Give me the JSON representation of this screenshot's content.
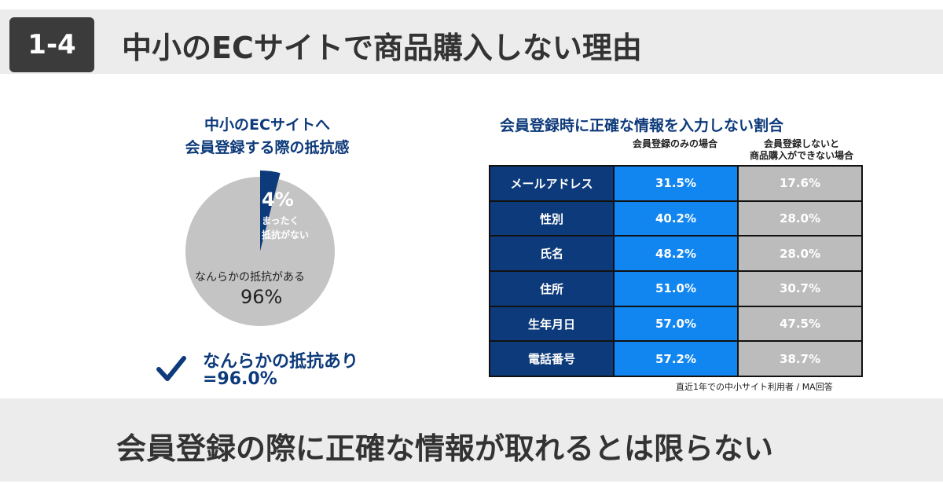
{
  "header": {
    "badge": "1-4",
    "title": "中小のECサイトで商品購入しない理由"
  },
  "conclusion": "会員登録の際に正確な情報が取れるとは限らない",
  "chart_data": [
    {
      "type": "pie",
      "title_line1": "中小のECサイトへ",
      "title_line2": "会員登録する際の抵抗感",
      "slices": [
        {
          "label_value": "4%",
          "label_line1": "まったく",
          "label_line2": "抵抗がない",
          "value": 4,
          "color": "#0d3a7a"
        },
        {
          "label_value": "96%",
          "label_line1": "なんらかの抵抗がある",
          "value": 96,
          "color": "#c4c4c4"
        }
      ]
    },
    {
      "type": "table",
      "title": "会員登録時に正確な情報を入力しない割合",
      "columns": [
        "会員登録のみの場合",
        "会員登録しないと",
        "商品購入ができない場合"
      ],
      "rows": [
        {
          "label": "メールアドレス",
          "a": "31.5%",
          "b": "17.6%",
          "highlight": false
        },
        {
          "label": "性別",
          "a": "40.2%",
          "b": "28.0%",
          "highlight": false
        },
        {
          "label": "氏名",
          "a": "48.2%",
          "b": "28.0%",
          "highlight": false
        },
        {
          "label": "住所",
          "a": "51.0%",
          "b": "30.7%",
          "highlight": true
        },
        {
          "label": "生年月日",
          "a": "57.0%",
          "b": "47.5%",
          "highlight": true
        },
        {
          "label": "電話番号",
          "a": "57.2%",
          "b": "38.7%",
          "highlight": true
        }
      ],
      "note": "直近1年での中小サイト利用者 / MA回答"
    }
  ],
  "result": {
    "line1": "なんらかの抵抗あり",
    "line2": "=96.0%"
  }
}
